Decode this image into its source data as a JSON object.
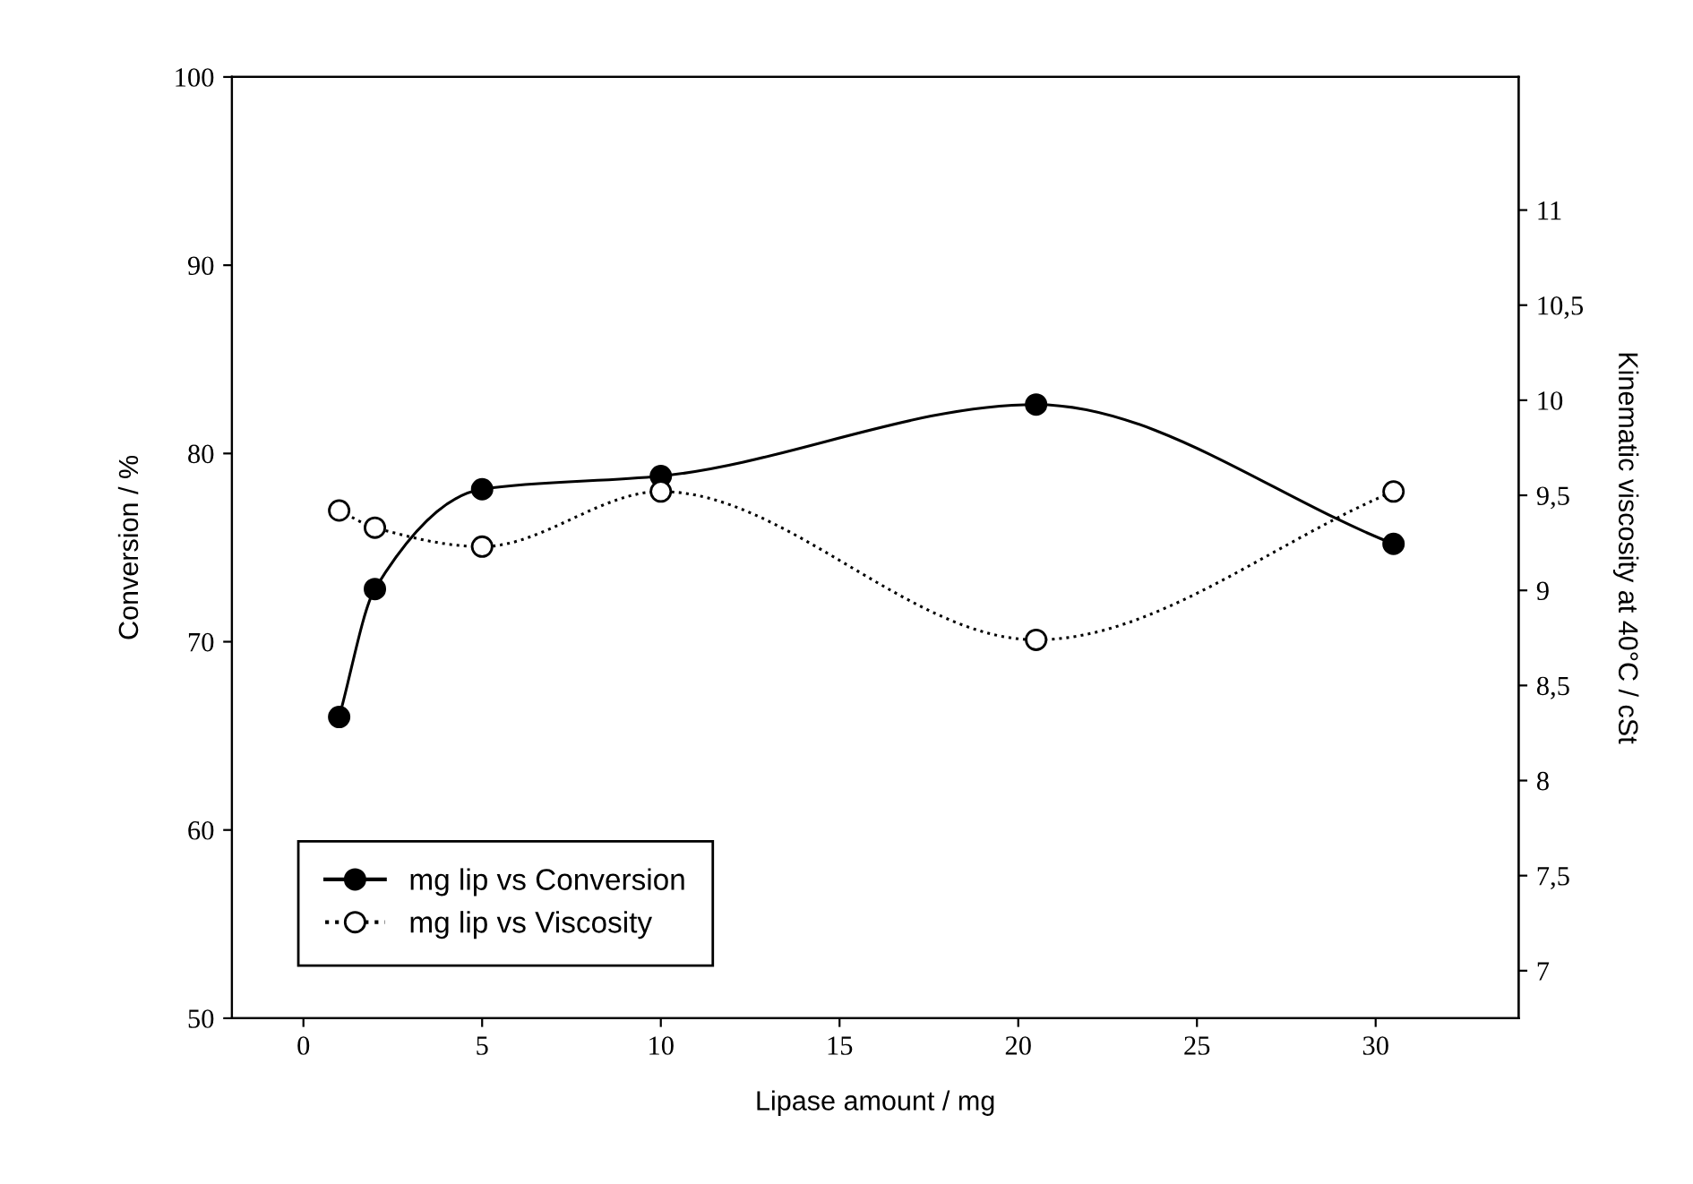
{
  "chart_data": {
    "type": "line",
    "xlabel": "Lipase amount / mg",
    "ylabel": "Conversion / %",
    "y2label": "Kinematic viscosity at 40°C / cSt",
    "xlim": [
      -2,
      34
    ],
    "xticks": [
      0,
      5,
      10,
      15,
      20,
      25,
      30
    ],
    "ylim": [
      50,
      100
    ],
    "yticks": [
      50,
      60,
      70,
      80,
      90,
      100
    ],
    "y2lim": [
      6.75,
      11.7
    ],
    "y2ticks": [
      7,
      {
        "value": 7.5,
        "label": "7,5"
      },
      8,
      {
        "value": 8.5,
        "label": "8,5"
      },
      9,
      {
        "value": 9.5,
        "label": "9,5"
      },
      10,
      {
        "value": 10.5,
        "label": "10,5"
      },
      11
    ],
    "marker": "circle",
    "grid": false,
    "legend": "bottom left",
    "series": [
      {
        "name": "mg lip vs Conversion",
        "color": "#000000",
        "line_style": "solid",
        "x": [
          1,
          2,
          5,
          10,
          20.5,
          30.5
        ],
        "values": [
          66,
          72.8,
          78.1,
          78.8,
          82.6,
          75.2
        ]
      },
      {
        "name": "mg lip vs Viscosity",
        "color": "#000000",
        "line_style": "dotted",
        "axis": "y2",
        "x": [
          1,
          2,
          5,
          10,
          20.5,
          30.5
        ],
        "values": [
          9.42,
          9.33,
          9.23,
          9.52,
          8.74,
          9.52
        ]
      }
    ]
  }
}
